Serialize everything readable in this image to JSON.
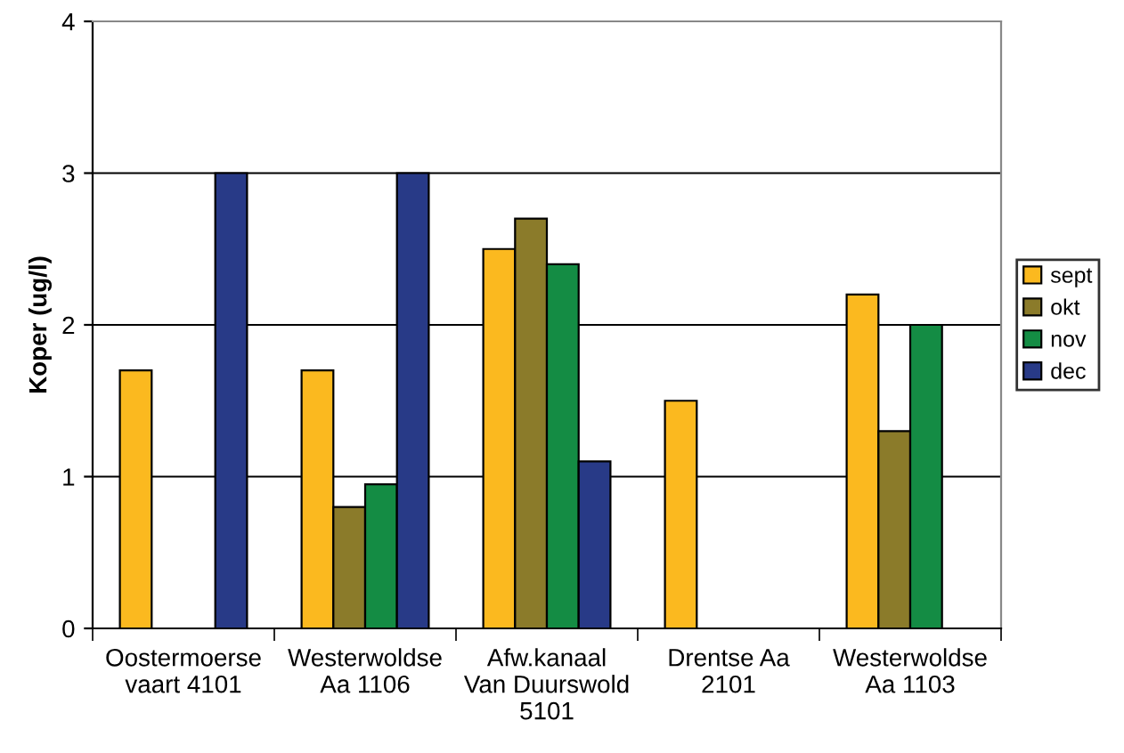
{
  "chart_data": {
    "type": "bar",
    "ylabel": "Koper (ug/l)",
    "categories": [
      "Oostermoerse\nvaart 4101",
      "Westerwoldse\nAa 1106",
      "Afw.kanaal\nVan Duurswold\n5101",
      "Drentse Aa\n2101",
      "Westerwoldse\nAa 1103"
    ],
    "series": [
      {
        "name": "sept",
        "color": "#fbb91f",
        "values": [
          1.7,
          1.7,
          2.5,
          1.5,
          2.2
        ]
      },
      {
        "name": "okt",
        "color": "#8b7b2a",
        "values": [
          null,
          0.8,
          2.7,
          null,
          1.3
        ]
      },
      {
        "name": "nov",
        "color": "#148c44",
        "values": [
          null,
          0.95,
          2.4,
          null,
          2.0
        ]
      },
      {
        "name": "dec",
        "color": "#283a87",
        "values": [
          3.0,
          3.0,
          1.1,
          null,
          null
        ]
      }
    ],
    "ylim": [
      0,
      4
    ],
    "yticks": [
      0,
      1,
      2,
      3,
      4
    ],
    "grid": "y",
    "legend": "right"
  }
}
